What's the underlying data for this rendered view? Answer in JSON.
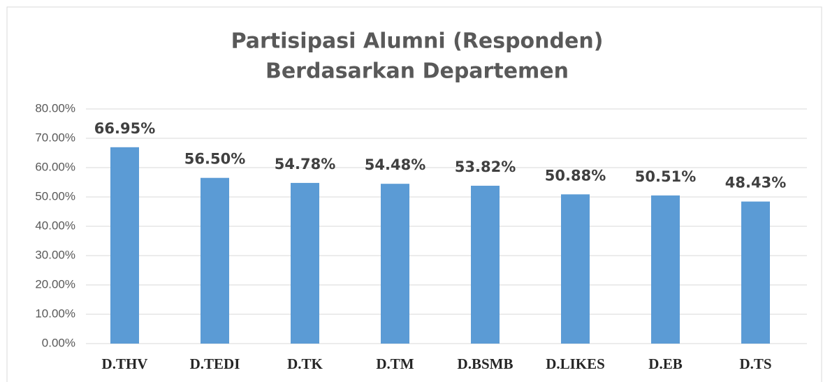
{
  "chart_data": {
    "type": "bar",
    "title": [
      "Partisipasi Alumni (Responden)",
      "Berdasarkan Departemen"
    ],
    "categories": [
      "D.THV",
      "D.TEDI",
      "D.TK",
      "D.TM",
      "D.BSMB",
      "D.LIKES",
      "D.EB",
      "D.TS"
    ],
    "values": [
      66.95,
      56.5,
      54.78,
      54.48,
      53.82,
      50.88,
      50.51,
      48.43
    ],
    "value_labels": [
      "66.95%",
      "56.50%",
      "54.78%",
      "54.48%",
      "53.82%",
      "50.88%",
      "50.51%",
      "48.43%"
    ],
    "color": "#5b9bd5",
    "ylim": [
      0,
      80
    ],
    "yticks": [
      {
        "value": 0,
        "label": "0.00%"
      },
      {
        "value": 10,
        "label": "10.00%"
      },
      {
        "value": 20,
        "label": "20.00%"
      },
      {
        "value": 30,
        "label": "30.00%"
      },
      {
        "value": 40,
        "label": "40.00%"
      },
      {
        "value": 50,
        "label": "50.00%"
      },
      {
        "value": 60,
        "label": "60.00%"
      },
      {
        "value": 70,
        "label": "70.00%"
      },
      {
        "value": 80,
        "label": "80.00%"
      }
    ],
    "grid": true
  }
}
